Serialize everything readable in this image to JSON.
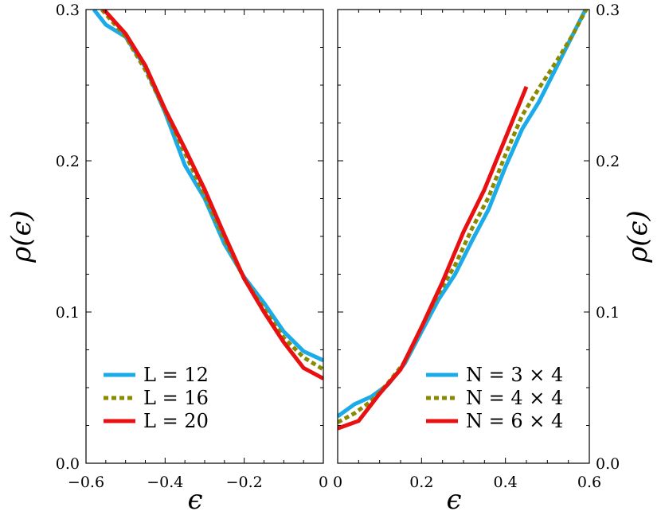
{
  "chart_data": [
    {
      "type": "line",
      "xlabel": "ϵ",
      "ylabel": "ρ(ϵ)",
      "xlim": [
        -0.6,
        0.0
      ],
      "ylim": [
        0.0,
        0.3
      ],
      "xticks": [
        -0.6,
        -0.4,
        -0.2,
        0.0
      ],
      "xtick_labels": [
        "−0.6",
        "−0.4",
        "−0.2",
        "0"
      ],
      "yticks": [
        0.0,
        0.1,
        0.2,
        0.3
      ],
      "ytick_labels": [
        "0.0",
        "0.1",
        "0.2",
        "0.3"
      ],
      "legend_position": "bottom-left",
      "series": [
        {
          "name": "L = 12",
          "color": "#1aabe8",
          "style": "solid",
          "x": [
            -0.58,
            -0.55,
            -0.5,
            -0.45,
            -0.4,
            -0.35,
            -0.3,
            -0.25,
            -0.2,
            -0.15,
            -0.1,
            -0.05,
            0.0
          ],
          "y": [
            0.3,
            0.29,
            0.282,
            0.262,
            0.232,
            0.197,
            0.175,
            0.145,
            0.123,
            0.106,
            0.087,
            0.074,
            0.068
          ]
        },
        {
          "name": "L = 16",
          "color": "#8a8a00",
          "style": "dotted",
          "x": [
            -0.56,
            -0.55,
            -0.5,
            -0.45,
            -0.4,
            -0.35,
            -0.3,
            -0.25,
            -0.2,
            -0.15,
            -0.1,
            -0.05,
            0.0
          ],
          "y": [
            0.3,
            0.297,
            0.282,
            0.26,
            0.233,
            0.205,
            0.177,
            0.148,
            0.122,
            0.102,
            0.083,
            0.07,
            0.062
          ]
        },
        {
          "name": "L = 20",
          "color": "#e81010",
          "style": "solid",
          "x": [
            -0.555,
            -0.5,
            -0.45,
            -0.4,
            -0.35,
            -0.3,
            -0.25,
            -0.2,
            -0.15,
            -0.1,
            -0.05,
            0.0
          ],
          "y": [
            0.3,
            0.284,
            0.263,
            0.234,
            0.208,
            0.181,
            0.151,
            0.122,
            0.1,
            0.08,
            0.063,
            0.056
          ]
        }
      ]
    },
    {
      "type": "line",
      "xlabel": "ϵ",
      "ylabel": "ρ(ϵ)",
      "xlim": [
        0.0,
        0.6
      ],
      "ylim": [
        0.0,
        0.3
      ],
      "xticks": [
        0.0,
        0.2,
        0.4,
        0.6
      ],
      "xtick_labels": [
        "0",
        "0.2",
        "0.4",
        "0.6"
      ],
      "yticks": [
        0.0,
        0.1,
        0.2,
        0.3
      ],
      "ytick_labels": [
        "0.0",
        "0.1",
        "0.2",
        "0.3"
      ],
      "legend_position": "bottom-right",
      "series": [
        {
          "name": "N = 3 × 4",
          "color": "#1aabe8",
          "style": "solid",
          "x": [
            0.0,
            0.04,
            0.08,
            0.12,
            0.16,
            0.2,
            0.24,
            0.28,
            0.32,
            0.36,
            0.4,
            0.44,
            0.48,
            0.52,
            0.56,
            0.6
          ],
          "y": [
            0.031,
            0.039,
            0.044,
            0.052,
            0.066,
            0.087,
            0.108,
            0.125,
            0.147,
            0.168,
            0.196,
            0.221,
            0.239,
            0.261,
            0.283,
            0.305
          ]
        },
        {
          "name": "N = 4 × 4",
          "color": "#8a8a00",
          "style": "dotted",
          "x": [
            0.0,
            0.04,
            0.08,
            0.12,
            0.16,
            0.2,
            0.24,
            0.28,
            0.32,
            0.36,
            0.4,
            0.44,
            0.48,
            0.52,
            0.56,
            0.6
          ],
          "y": [
            0.027,
            0.033,
            0.041,
            0.053,
            0.067,
            0.09,
            0.112,
            0.131,
            0.155,
            0.176,
            0.204,
            0.23,
            0.248,
            0.265,
            0.283,
            0.304
          ]
        },
        {
          "name": "N = 6 × 4",
          "color": "#e81010",
          "style": "solid",
          "x": [
            0.0,
            0.05,
            0.1,
            0.15,
            0.2,
            0.25,
            0.3,
            0.35,
            0.4,
            0.45
          ],
          "y": [
            0.023,
            0.028,
            0.046,
            0.062,
            0.09,
            0.12,
            0.153,
            0.181,
            0.215,
            0.249
          ]
        }
      ]
    }
  ]
}
